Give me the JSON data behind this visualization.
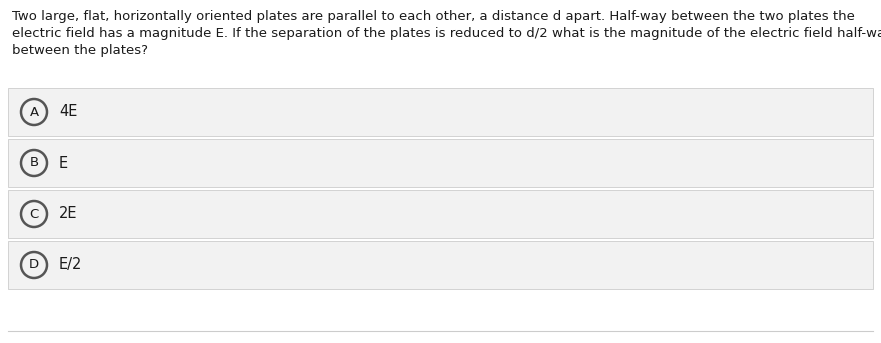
{
  "question_text_line1": "Two large, flat, horizontally oriented plates are parallel to each other, a distance d apart. Half-way between the two plates the",
  "question_text_line2": "electric field has a magnitude E. If the separation of the plates is reduced to d/2 what is the magnitude of the electric field half-way",
  "question_text_line3": "between the plates?",
  "options": [
    {
      "letter": "A",
      "text": "4E"
    },
    {
      "letter": "B",
      "text": "E"
    },
    {
      "letter": "C",
      "text": "2E"
    },
    {
      "letter": "D",
      "text": "E/2"
    }
  ],
  "bg_color": "#ffffff",
  "option_bg_color": "#f2f2f2",
  "option_border_color": "#cccccc",
  "text_color": "#1a1a1a",
  "circle_edge_color": "#555555",
  "question_fontsize": 9.5,
  "option_fontsize": 10.5,
  "letter_fontsize": 9.5,
  "fig_width": 8.81,
  "fig_height": 3.43,
  "dpi": 100
}
